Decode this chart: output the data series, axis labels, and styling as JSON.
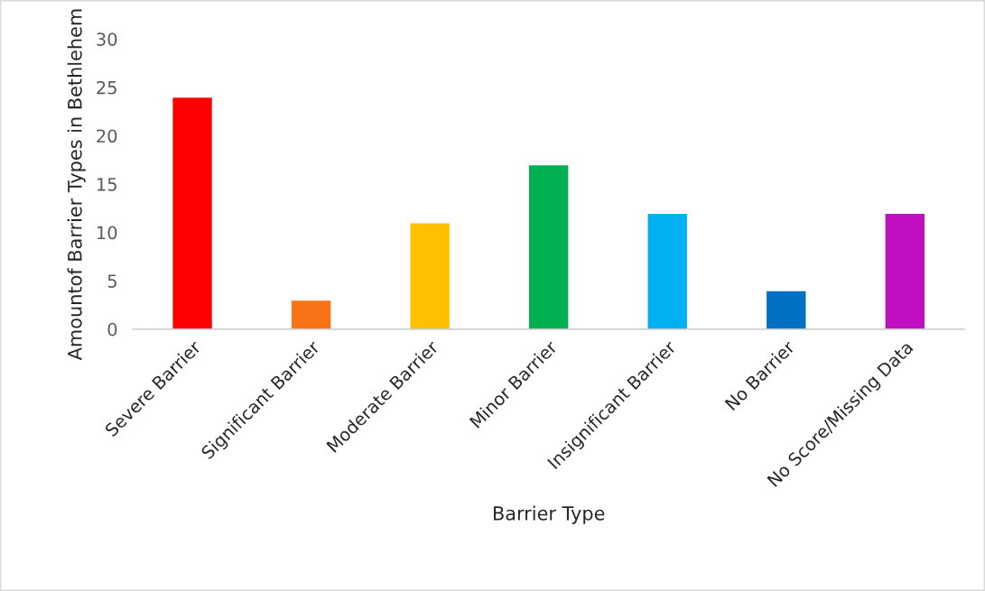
{
  "chart_data": {
    "type": "bar",
    "xlabel": "Barrier Type",
    "ylabel": "Amountof Barrier Types in Bethlehem",
    "categories": [
      "Severe Barrier",
      "Significant Barrier",
      "Moderate Barrier",
      "Minor Barrier",
      "Insignificant Barrier",
      "No Barrier",
      "No Score/Missing Data"
    ],
    "values": [
      24,
      3,
      11,
      17,
      12,
      4,
      12
    ],
    "colors": [
      "#ff0000",
      "#f97316",
      "#ffc000",
      "#00b050",
      "#00b0f0",
      "#0070c0",
      "#c00fc0"
    ],
    "ylim": [
      0,
      30
    ],
    "yticks": [
      0,
      5,
      10,
      15,
      20,
      25,
      30
    ],
    "grid": false,
    "legend": false
  }
}
